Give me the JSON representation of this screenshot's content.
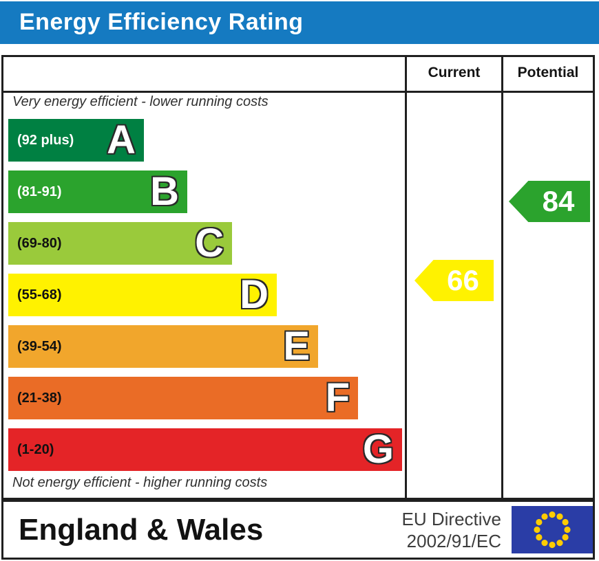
{
  "header": {
    "title": "Energy Efficiency Rating",
    "title_bg": "#157ac1"
  },
  "columns": {
    "current_label": "Current",
    "potential_label": "Potential"
  },
  "notes": {
    "top": "Very energy efficient - lower running costs",
    "bottom": "Not energy efficient - higher running costs"
  },
  "bands": [
    {
      "letter": "A",
      "range": "(92 plus)",
      "color": "#008042",
      "label_color": "#ffffff"
    },
    {
      "letter": "B",
      "range": "(81-91)",
      "color": "#2ba32d",
      "label_color": "#ffffff"
    },
    {
      "letter": "C",
      "range": "(69-80)",
      "color": "#9aca3b",
      "label_color": "#111111"
    },
    {
      "letter": "D",
      "range": "(55-68)",
      "color": "#fff200",
      "label_color": "#111111"
    },
    {
      "letter": "E",
      "range": "(39-54)",
      "color": "#f1a62c",
      "label_color": "#111111"
    },
    {
      "letter": "F",
      "range": "(21-38)",
      "color": "#ea6c26",
      "label_color": "#111111"
    },
    {
      "letter": "G",
      "range": "(1-20)",
      "color": "#e42427",
      "label_color": "#111111"
    }
  ],
  "ratings": {
    "current": {
      "value": "66",
      "color": "#fff200",
      "band": "D"
    },
    "potential": {
      "value": "84",
      "color": "#2ba32d",
      "band": "B"
    }
  },
  "footer": {
    "region": "England & Wales",
    "directive_line1": "EU Directive",
    "directive_line2": "2002/91/EC",
    "eu_flag": {
      "bg": "#2a3da6",
      "star_color": "#ffcc00",
      "stars": 12
    }
  },
  "chart_data": {
    "type": "bar",
    "title": "Energy Efficiency Rating",
    "categories": [
      "A",
      "B",
      "C",
      "D",
      "E",
      "F",
      "G"
    ],
    "band_ranges": [
      "92 plus",
      "81-91",
      "69-80",
      "55-68",
      "39-54",
      "21-38",
      "1-20"
    ],
    "band_colors": [
      "#008042",
      "#2ba32d",
      "#9aca3b",
      "#fff200",
      "#f1a62c",
      "#ea6c26",
      "#e42427"
    ],
    "bar_lengths_relative": [
      0.34,
      0.45,
      0.57,
      0.68,
      0.79,
      0.89,
      1.0
    ],
    "markers": [
      {
        "name": "Current",
        "value": 66,
        "band": "D",
        "color": "#fff200"
      },
      {
        "name": "Potential",
        "value": 84,
        "band": "B",
        "color": "#2ba32d"
      }
    ],
    "annotations": [
      "Very energy efficient - lower running costs",
      "Not energy efficient - higher running costs"
    ],
    "legend_position": "none",
    "columns": [
      "Current",
      "Potential"
    ],
    "region": "England & Wales",
    "directive": "EU Directive 2002/91/EC"
  }
}
